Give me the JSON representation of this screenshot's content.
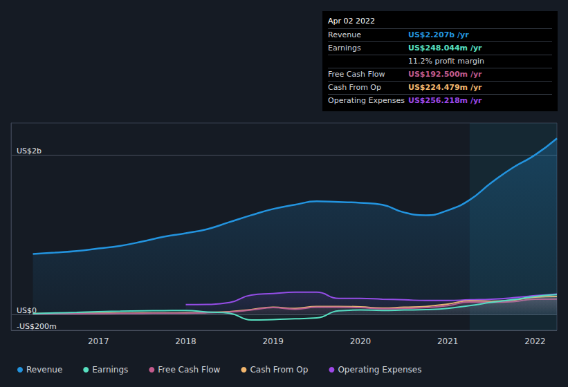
{
  "chart_data": {
    "type": "line",
    "x": [
      2016.25,
      2016.5,
      2016.75,
      2017,
      2017.25,
      2017.5,
      2017.75,
      2018,
      2018.25,
      2018.5,
      2018.75,
      2019,
      2019.25,
      2019.5,
      2019.75,
      2020,
      2020.25,
      2020.5,
      2020.75,
      2021,
      2021.25,
      2021.5,
      2021.75,
      2022,
      2022.25
    ],
    "xlim": [
      2016,
      2022.25
    ],
    "xticks": [
      2017,
      2018,
      2019,
      2020,
      2021,
      2022
    ],
    "ylim": [
      -200,
      2400
    ],
    "yticks": [
      {
        "value": -200,
        "label": "-US$200m"
      },
      {
        "value": 0,
        "label": "US$0"
      },
      {
        "value": 2000,
        "label": "US$2b"
      }
    ],
    "grid": true,
    "legend": "bottom",
    "highlight_x": [
      2021.25,
      2022.25
    ],
    "series": [
      {
        "name": "Revenue",
        "color": "#2394df",
        "values": [
          757,
          775,
          795,
          826,
          860,
          913,
          974,
          1018,
          1070,
          1157,
          1244,
          1322,
          1375,
          1418,
          1409,
          1400,
          1375,
          1279,
          1244,
          1305,
          1435,
          1652,
          1843,
          2000,
          2207
        ]
      },
      {
        "name": "Earnings",
        "color": "#58e1c1",
        "values": [
          10,
          18,
          25,
          35,
          40,
          45,
          48,
          50,
          30,
          15,
          -70,
          -65,
          -55,
          -45,
          45,
          55,
          50,
          55,
          60,
          75,
          110,
          150,
          185,
          225,
          248
        ]
      },
      {
        "name": "Free Cash Flow",
        "color": "#c35b8d",
        "values": [
          5,
          7,
          9,
          10,
          12,
          13,
          14,
          15,
          20,
          30,
          55,
          85,
          65,
          90,
          90,
          85,
          70,
          75,
          85,
          110,
          155,
          150,
          160,
          190,
          192.5
        ]
      },
      {
        "name": "Cash From Op",
        "color": "#f2b66d",
        "values": [
          10,
          12,
          14,
          15,
          17,
          18,
          19,
          20,
          25,
          35,
          60,
          90,
          75,
          100,
          100,
          95,
          80,
          90,
          100,
          130,
          170,
          165,
          180,
          215,
          224
        ]
      },
      {
        "name": "Operating Expenses",
        "color": "#9e48e8",
        "values": [
          null,
          null,
          null,
          null,
          null,
          null,
          null,
          122,
          125,
          148,
          243,
          261,
          278,
          278,
          200,
          200,
          191,
          183,
          174,
          174,
          183,
          191,
          209,
          235,
          256
        ]
      }
    ],
    "annotation": {
      "title": "Apr 02 2022",
      "rows": [
        {
          "label": "Revenue",
          "value": "US$2.207b /yr"
        },
        {
          "label": "Earnings",
          "value": "US$248.044m /yr"
        },
        {
          "value": "11.2% profit margin"
        },
        {
          "label": "Free Cash Flow",
          "value": "US$192.500m /yr"
        },
        {
          "label": "Cash From Op",
          "value": "US$224.479m /yr"
        },
        {
          "label": "Operating Expenses",
          "value": "US$256.218m /yr"
        }
      ]
    }
  }
}
